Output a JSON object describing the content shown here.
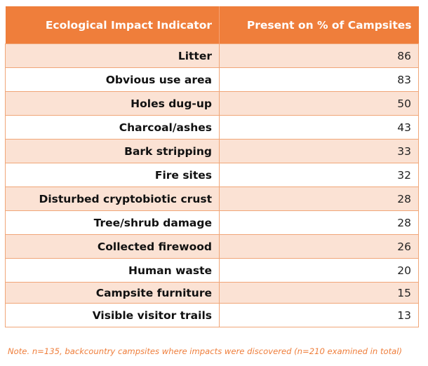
{
  "table": {
    "headers": [
      "Ecological Impact Indicator",
      "Present on % of Campsites"
    ],
    "rows": [
      {
        "indicator": "Litter",
        "percent": "86"
      },
      {
        "indicator": "Obvious use area",
        "percent": "83"
      },
      {
        "indicator": "Holes dug-up",
        "percent": "50"
      },
      {
        "indicator": "Charcoal/ashes",
        "percent": "43"
      },
      {
        "indicator": "Bark stripping",
        "percent": "33"
      },
      {
        "indicator": "Fire sites",
        "percent": "32"
      },
      {
        "indicator": "Disturbed cryptobiotic crust",
        "percent": "28"
      },
      {
        "indicator": "Tree/shrub damage",
        "percent": "28"
      },
      {
        "indicator": "Collected firewood",
        "percent": "26"
      },
      {
        "indicator": "Human waste",
        "percent": "20"
      },
      {
        "indicator": "Campsite furniture",
        "percent": "15"
      },
      {
        "indicator": "Visible visitor trails",
        "percent": "13"
      }
    ]
  },
  "note": "Note. n=135, backcountry campsites where impacts were discovered (n=210 examined in total)",
  "colors": {
    "header_bg": "#ef7e3b",
    "stripe_bg": "#fbe2d4",
    "border": "#f0a678",
    "note_text": "#ef7e3b"
  }
}
